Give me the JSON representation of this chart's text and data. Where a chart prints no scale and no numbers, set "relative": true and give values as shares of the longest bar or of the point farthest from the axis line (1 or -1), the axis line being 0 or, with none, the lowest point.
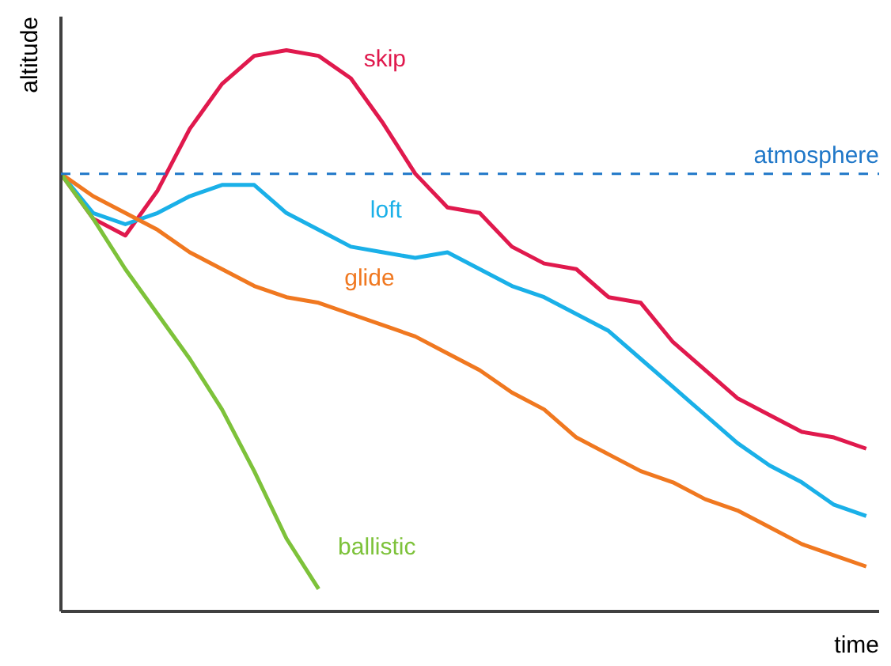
{
  "chart_data": {
    "type": "line",
    "relative": true,
    "xlabel": "time",
    "ylabel": "altitude",
    "grid": false,
    "line_style": "solid",
    "marker": "none",
    "categories": [
      null,
      null,
      null,
      null,
      null,
      null,
      null,
      null,
      null,
      null,
      null,
      null,
      null,
      null,
      null,
      null,
      null,
      null,
      null,
      null,
      null,
      null,
      null,
      null,
      null,
      null
    ],
    "series": [
      {
        "name": "skip",
        "color": "#e0194d",
        "values": [
          0.78,
          0.7,
          0.67,
          0.75,
          0.86,
          0.94,
          0.99,
          1.0,
          0.99,
          0.95,
          0.87,
          0.78,
          0.72,
          0.71,
          0.65,
          0.62,
          0.61,
          0.56,
          0.55,
          0.48,
          0.43,
          0.38,
          0.35,
          0.32,
          0.31,
          0.29
        ]
      },
      {
        "name": "loft",
        "color": "#1ab0e8",
        "values": [
          0.78,
          0.71,
          0.69,
          0.71,
          0.74,
          0.76,
          0.76,
          0.71,
          0.68,
          0.65,
          0.64,
          0.63,
          0.64,
          0.61,
          0.58,
          0.56,
          0.53,
          0.5,
          0.45,
          0.4,
          0.35,
          0.3,
          0.26,
          0.23,
          0.19,
          0.17
        ]
      },
      {
        "name": "glide",
        "color": "#f07820",
        "values": [
          0.78,
          0.74,
          0.71,
          0.68,
          0.64,
          0.61,
          0.58,
          0.56,
          0.55,
          0.53,
          0.51,
          0.49,
          0.46,
          0.43,
          0.39,
          0.36,
          0.31,
          0.28,
          0.25,
          0.23,
          0.2,
          0.18,
          0.15,
          0.12,
          0.1,
          0.08
        ]
      },
      {
        "name": "ballistic",
        "color": "#7dc23a",
        "values": [
          0.78,
          0.7,
          0.61,
          0.53,
          0.45,
          0.36,
          0.25,
          0.13,
          0.04,
          null,
          null,
          null,
          null,
          null,
          null,
          null,
          null,
          null,
          null,
          null,
          null,
          null,
          null,
          null,
          null,
          null
        ]
      }
    ],
    "ref_lines": [
      {
        "axis": "y",
        "value": 0.78,
        "label": "atmosphere",
        "color": "#1f77c8",
        "line_style": "dashed"
      }
    ]
  }
}
